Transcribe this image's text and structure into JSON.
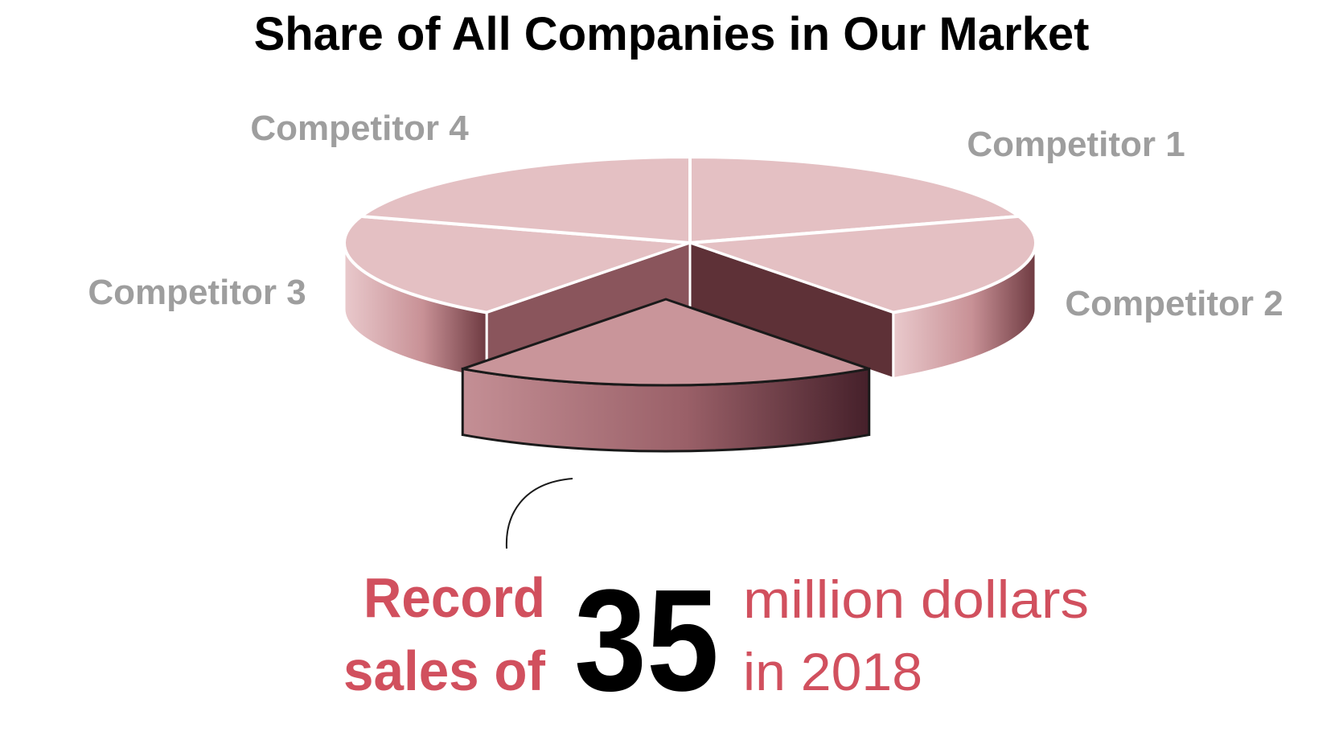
{
  "chart_data": {
    "type": "pie",
    "title": "Share of All Companies in Our Market",
    "slices": [
      {
        "label": "Competitor 1",
        "value": 20,
        "color": "#e4c0c3"
      },
      {
        "label": "Competitor 2",
        "value": 20,
        "color": "#e4c0c3"
      },
      {
        "label": "",
        "value": 20,
        "color": "#c9959a"
      },
      {
        "label": "Competitor 3",
        "value": 20,
        "color": "#e4c0c3"
      },
      {
        "label": "Competitor 4",
        "value": 20,
        "color": "#e4c0c3"
      }
    ]
  },
  "callout": {
    "line1": "Record",
    "line2": "sales of",
    "number": "35",
    "unit_line1": "million dollars",
    "unit_line2": "in 2018"
  },
  "colors": {
    "accent": "#d1505e",
    "slice": "#e4c0c3",
    "highlight": "#c9959a",
    "side_dark": "#5e3137"
  }
}
